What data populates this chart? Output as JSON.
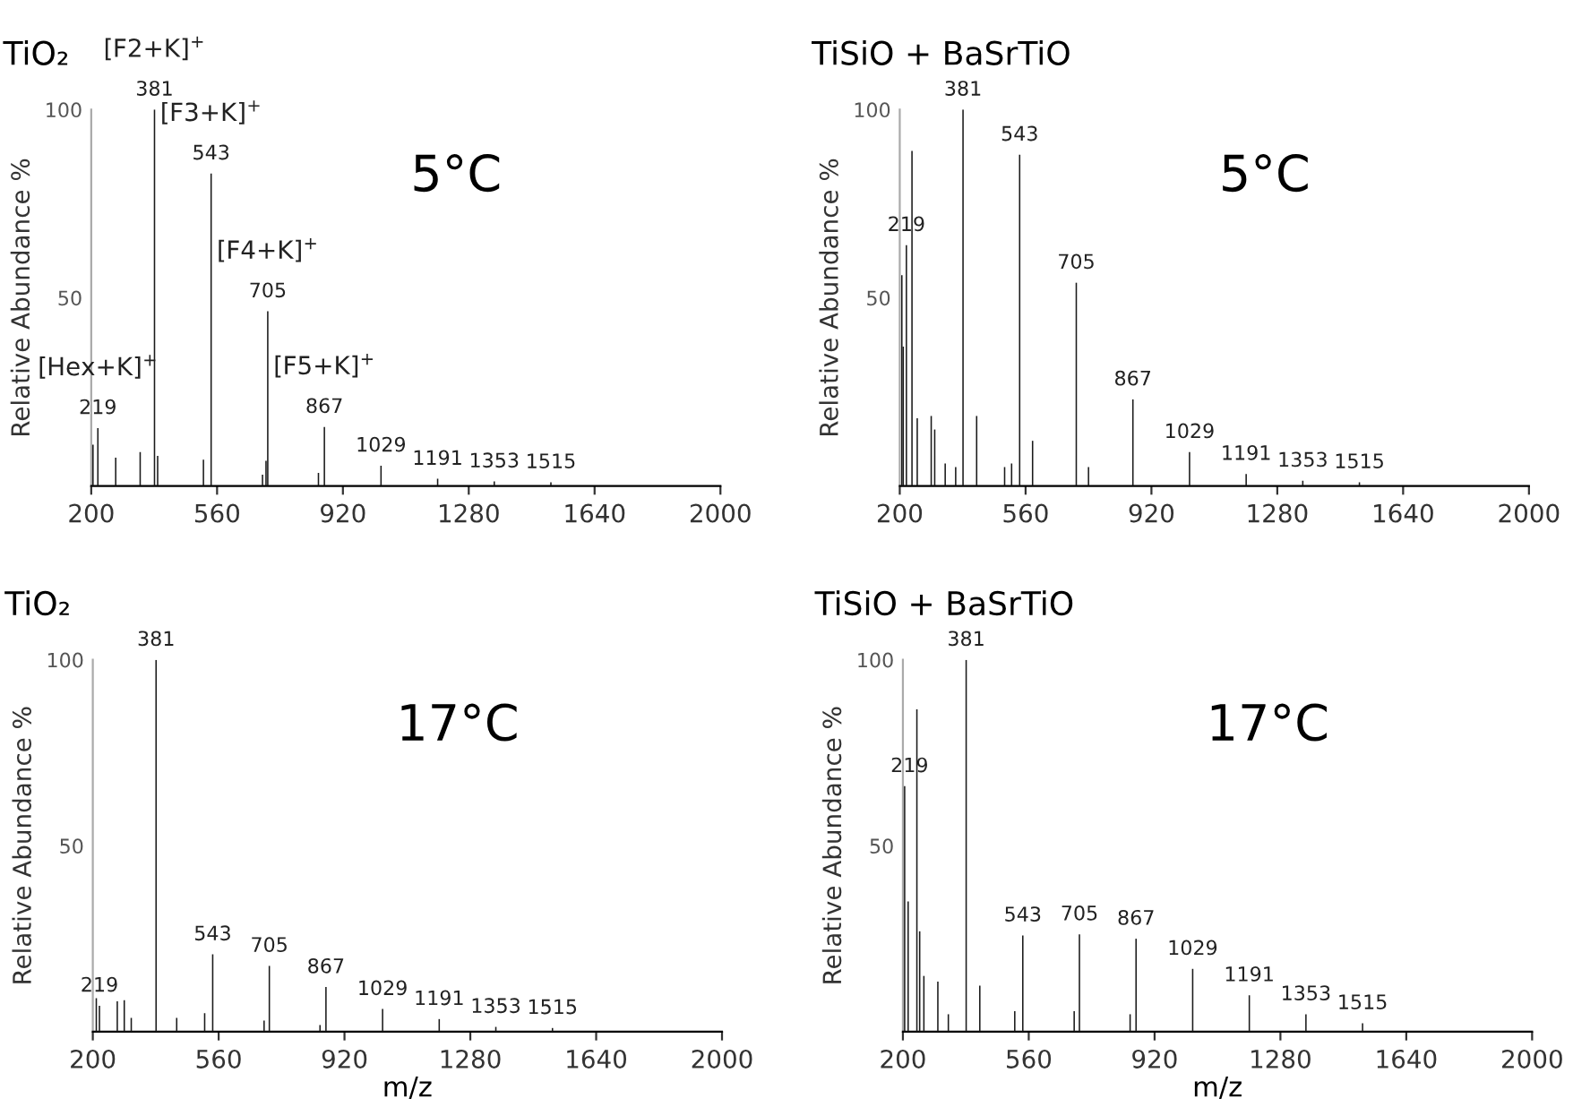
{
  "chart_data": [
    {
      "type": "bar",
      "title": "TiO₂",
      "ylabel": "Relative Abundance %",
      "xlim": [
        200,
        2000
      ],
      "xticks": [
        200,
        560,
        920,
        1280,
        1640,
        2000
      ],
      "ylim": [
        0,
        100
      ],
      "yticks": [
        50,
        100
      ],
      "grid": false,
      "tick_labels": "xy",
      "x": [
        205,
        219,
        270,
        340,
        381,
        390,
        521,
        543,
        690,
        700,
        705,
        850,
        867,
        1029,
        1191,
        1353,
        1515
      ],
      "values": [
        11,
        15.4,
        7.5,
        9,
        100,
        8,
        7,
        83,
        3,
        6.7,
        46.4,
        3.5,
        15.7,
        5.4,
        1.9,
        1.2,
        1
      ],
      "color": "#1a1a1a",
      "annotations": [
        "5°C",
        {
          "text": "219",
          "x": 219,
          "y": 15.4
        },
        {
          "text": "[Hex+K]$^{+}$",
          "x": 219,
          "y": 15.4
        },
        {
          "text": "381",
          "x": 381,
          "y": 100
        },
        {
          "text": "[F2+K]$^{+}$",
          "x": 381,
          "y": 100
        },
        {
          "text": "543",
          "x": 543,
          "y": 83
        },
        {
          "text": "[F3+K]$^{+}$",
          "x": 543,
          "y": 83
        },
        {
          "text": "705",
          "x": 705,
          "y": 46.4
        },
        {
          "text": "[F4+K]$^{+}$",
          "x": 705,
          "y": 46.4
        },
        {
          "text": "867",
          "x": 867,
          "y": 15.7
        },
        {
          "text": "[F5+K]$^{+}$",
          "x": 867,
          "y": 15.7
        },
        {
          "text": "1029",
          "x": 1029,
          "y": 5.4
        },
        {
          "text": "1191",
          "x": 1191,
          "y": 1.9
        },
        {
          "text": "1353",
          "x": 1353,
          "y": 1.2
        },
        {
          "text": "1515",
          "x": 1515,
          "y": 1
        }
      ]
    },
    {
      "type": "bar",
      "title": "TiSiO + BaSrTiO",
      "ylabel": "Relative Abundance %",
      "xlim": [
        200,
        2000
      ],
      "xticks": [
        200,
        560,
        920,
        1280,
        1640,
        2000
      ],
      "ylim": [
        0,
        100
      ],
      "yticks": [
        50,
        100
      ],
      "grid": false,
      "x": [
        206,
        210,
        219,
        235,
        250,
        290,
        300,
        330,
        360,
        381,
        420,
        500,
        520,
        543,
        580,
        705,
        740,
        867,
        1029,
        1191,
        1353,
        1515
      ],
      "values": [
        56,
        37,
        64,
        89,
        18,
        18.6,
        15,
        6,
        5,
        100,
        18.6,
        5,
        6,
        88,
        12,
        54,
        5,
        23,
        9,
        3.2,
        1.4,
        1
      ],
      "color": "#1a1a1a",
      "annotations": [
        "5°C",
        {
          "text": "219",
          "x": 219,
          "y": 64
        },
        {
          "text": "381",
          "x": 381,
          "y": 100
        },
        {
          "text": "543",
          "x": 543,
          "y": 88
        },
        {
          "text": "705",
          "x": 705,
          "y": 54
        },
        {
          "text": "867",
          "x": 867,
          "y": 23
        },
        {
          "text": "1029",
          "x": 1029,
          "y": 9
        },
        {
          "text": "1191",
          "x": 1191,
          "y": 3.2
        },
        {
          "text": "1353",
          "x": 1353,
          "y": 1.4
        },
        {
          "text": "1515",
          "x": 1515,
          "y": 1
        }
      ]
    },
    {
      "type": "bar",
      "title": "TiO₂",
      "xlabel": "m/z",
      "ylabel": "Relative Abundance %",
      "xlim": [
        200,
        2000
      ],
      "xticks": [
        200,
        560,
        920,
        1280,
        1640,
        2000
      ],
      "ylim": [
        0,
        100
      ],
      "yticks": [
        50,
        100
      ],
      "grid": false,
      "x": [
        210,
        219,
        270,
        290,
        310,
        381,
        440,
        520,
        543,
        690,
        705,
        850,
        867,
        1029,
        1191,
        1353,
        1515
      ],
      "values": [
        9,
        7,
        8.2,
        8.5,
        3.7,
        100,
        3.7,
        5,
        20.8,
        3,
        17.7,
        1.8,
        12,
        6.1,
        3.4,
        1.3,
        1
      ],
      "color": "#1a1a1a",
      "annotations": [
        "17°C",
        {
          "text": "219",
          "x": 219,
          "y": 7
        },
        {
          "text": "381",
          "x": 381,
          "y": 100
        },
        {
          "text": "543",
          "x": 543,
          "y": 20.8
        },
        {
          "text": "705",
          "x": 705,
          "y": 17.7
        },
        {
          "text": "867",
          "x": 867,
          "y": 12
        },
        {
          "text": "1029",
          "x": 1029,
          "y": 6.1
        },
        {
          "text": "1191",
          "x": 1191,
          "y": 3.4
        },
        {
          "text": "1353",
          "x": 1353,
          "y": 1.3
        },
        {
          "text": "1515",
          "x": 1515,
          "y": 1
        }
      ]
    },
    {
      "type": "bar",
      "title": "TiSiO + BaSrTiO",
      "xlabel": "m/z",
      "ylabel": "Relative Abundance %",
      "xlim": [
        200,
        2000
      ],
      "xticks": [
        200,
        560,
        920,
        1280,
        1640,
        2000
      ],
      "ylim": [
        0,
        100
      ],
      "yticks": [
        50,
        100
      ],
      "grid": false,
      "x": [
        205,
        215,
        240,
        248,
        260,
        300,
        330,
        381,
        420,
        520,
        543,
        690,
        705,
        850,
        867,
        1029,
        1191,
        1353,
        1515
      ],
      "values": [
        66,
        35,
        86.7,
        27,
        15,
        13.5,
        4.7,
        100,
        12.4,
        5.5,
        25.9,
        5.5,
        26.2,
        4.7,
        25,
        16.9,
        9.8,
        4.7,
        2.3
      ],
      "color": "#1a1a1a",
      "annotations": [
        "17°C",
        {
          "text": "219",
          "x": 219,
          "y": 66
        },
        {
          "text": "381",
          "x": 381,
          "y": 100
        },
        {
          "text": "543",
          "x": 543,
          "y": 25.9
        },
        {
          "text": "705",
          "x": 705,
          "y": 26.2
        },
        {
          "text": "867",
          "x": 867,
          "y": 25
        },
        {
          "text": "1029",
          "x": 1029,
          "y": 16.9
        },
        {
          "text": "1191",
          "x": 1191,
          "y": 9.8
        },
        {
          "text": "1353",
          "x": 1353,
          "y": 4.7
        },
        {
          "text": "1515",
          "x": 1515,
          "y": 2.3
        }
      ]
    }
  ]
}
